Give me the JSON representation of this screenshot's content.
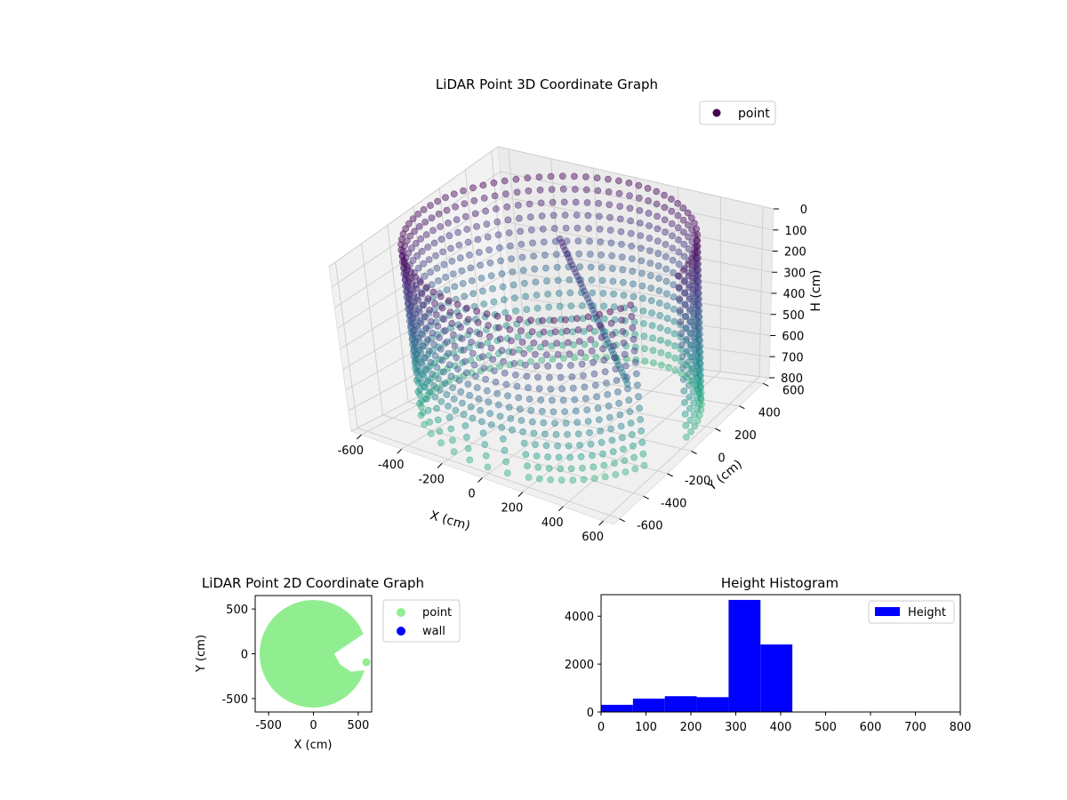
{
  "chart_data": [
    {
      "type": "scatter",
      "title": "LiDAR Point 3D Coordinate Graph",
      "xlabel": "X (cm)",
      "ylabel": "Y (cm)",
      "zlabel": "H (cm)",
      "xlim": [
        -650,
        650
      ],
      "ylim": [
        -650,
        650
      ],
      "zlim": [
        0,
        800
      ],
      "z_inverted": true,
      "xticks": [
        "-600",
        "-400",
        "-200",
        "0",
        "200",
        "400",
        "600"
      ],
      "yticks": [
        "-600",
        "-400",
        "-200",
        "0",
        "200",
        "400",
        "600"
      ],
      "zticks": [
        "0",
        "100",
        "200",
        "300",
        "400",
        "500",
        "600",
        "700",
        "800"
      ],
      "legend": {
        "position": "top-right",
        "entries": [
          {
            "label": "point",
            "color": "#440154"
          }
        ]
      },
      "colormap": "viridis",
      "series": [
        {
          "name": "point",
          "description_of_shape": "cylindrical wall of radius ~600 cm with points from height 0 to 800 cm, an opening near x≈500..600, y≈-150..0, plus an interior slanted cluster",
          "radius": 600,
          "h_range": [
            0,
            800
          ]
        }
      ]
    },
    {
      "type": "scatter",
      "title": "LiDAR Point 2D Coordinate Graph",
      "xlabel": "X (cm)",
      "ylabel": "Y (cm)",
      "xlim": [
        -650,
        650
      ],
      "ylim": [
        -650,
        650
      ],
      "xticks": [
        "-500",
        "0",
        "500"
      ],
      "yticks": [
        "-500",
        "0",
        "500"
      ],
      "legend": {
        "position": "outside-right",
        "entries": [
          {
            "label": "point",
            "color": "#90ee90"
          },
          {
            "label": "wall",
            "color": "#0000ff"
          }
        ]
      },
      "series": [
        {
          "name": "point",
          "color": "#90ee90",
          "radius": 600
        },
        {
          "name": "wall",
          "color": "#0000ff"
        }
      ]
    },
    {
      "type": "bar",
      "title": "Height Histogram",
      "xlabel": "",
      "ylabel": "",
      "xlim": [
        0,
        800
      ],
      "ylim": [
        0,
        4900
      ],
      "xticks": [
        "0",
        "100",
        "200",
        "300",
        "400",
        "500",
        "600",
        "700",
        "800"
      ],
      "yticks": [
        "0",
        "2000",
        "4000"
      ],
      "legend": {
        "position": "top-right",
        "entries": [
          {
            "label": "Height",
            "color": "#0000ff"
          }
        ]
      },
      "bins": [
        {
          "x0": 0,
          "x1": 71,
          "value": 300
        },
        {
          "x0": 71,
          "x1": 142,
          "value": 560
        },
        {
          "x0": 142,
          "x1": 213,
          "value": 660
        },
        {
          "x0": 213,
          "x1": 284,
          "value": 620
        },
        {
          "x0": 284,
          "x1": 355,
          "value": 4680
        },
        {
          "x0": 355,
          "x1": 426,
          "value": 2820
        }
      ],
      "color": "#0000ff"
    }
  ]
}
